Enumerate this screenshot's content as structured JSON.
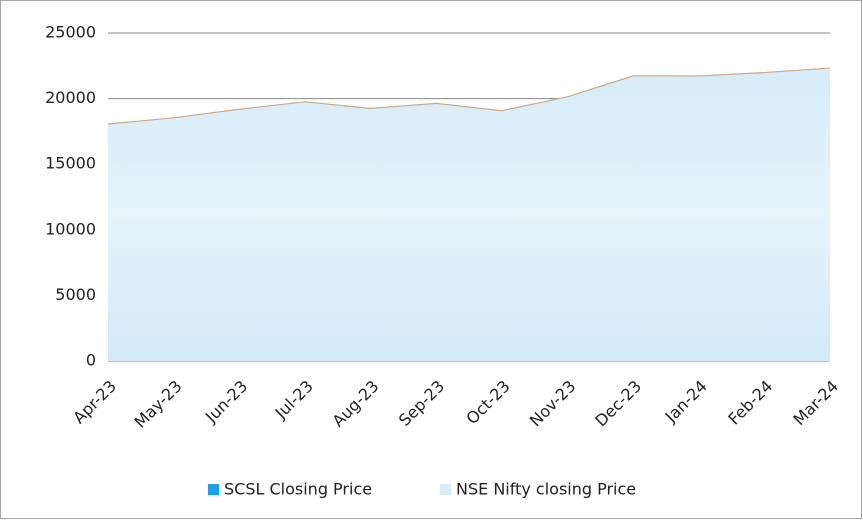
{
  "chart_data": {
    "type": "area",
    "categories": [
      "Apr-23",
      "May-23",
      "Jun-23",
      "Jul-23",
      "Aug-23",
      "Sep-23",
      "Oct-23",
      "Nov-23",
      "Dec-23",
      "Jan-24",
      "Feb-24",
      "Mar-24"
    ],
    "series": [
      {
        "name": "SCSL Closing Price",
        "color": "#1ba1e2",
        "values": [
          null,
          null,
          null,
          null,
          null,
          null,
          null,
          null,
          null,
          null,
          null,
          null
        ]
      },
      {
        "name": "NSE Nifty closing Price",
        "color": "#dbeef9",
        "values": [
          18065,
          18534,
          19189,
          19754,
          19254,
          19638,
          19080,
          20133,
          21731,
          21726,
          21983,
          22327
        ]
      }
    ],
    "ylim": [
      0,
      25000
    ],
    "yticks": [
      0,
      5000,
      10000,
      15000,
      20000,
      25000
    ],
    "grid": true,
    "legend": "bottom"
  }
}
